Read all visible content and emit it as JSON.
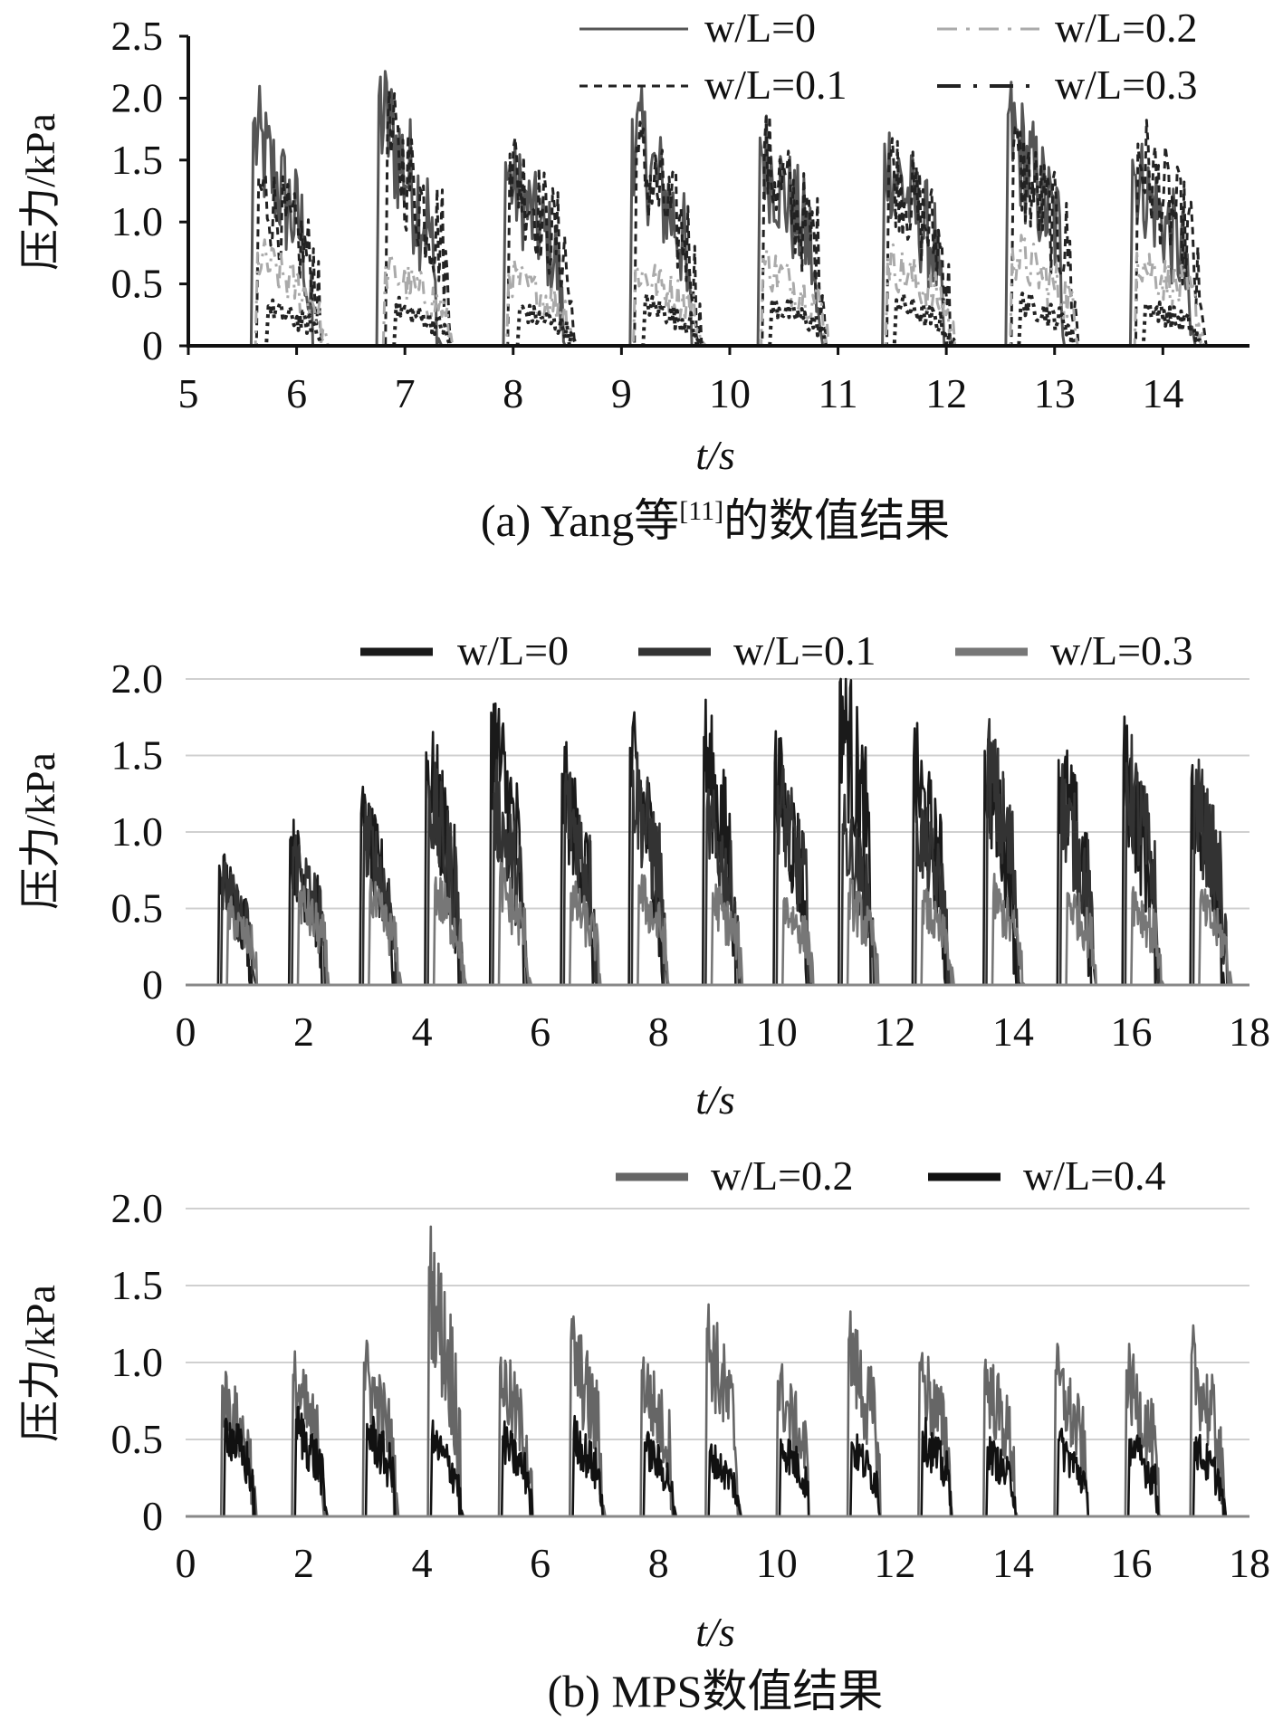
{
  "chart_data": [
    {
      "panel": "(a)",
      "type": "line",
      "caption": "(a) Yang等[11]的数值结果",
      "caption_parts": [
        "(a) Yang等",
        "[11]",
        "的数值结果"
      ],
      "xlabel": "t/s",
      "ylabel": "压力/kPa",
      "xlim": [
        5,
        14.8
      ],
      "ylim": [
        0,
        2.5
      ],
      "xticks": [
        "5",
        "6",
        "7",
        "8",
        "9",
        "10",
        "11",
        "12",
        "13",
        "14"
      ],
      "yticks": [
        "0",
        "0.5",
        "1.0",
        "1.5",
        "2.0",
        "2.5"
      ],
      "grid": false,
      "legend_position": "top-right",
      "series": [
        {
          "name": "w/L=0",
          "style": "solid",
          "color": "#555555",
          "impact_starts": [
            5.58,
            6.74,
            7.91,
            9.08,
            10.26,
            11.41,
            12.55,
            13.7
          ],
          "peaks": [
            1.8,
            2.02,
            1.48,
            1.83,
            1.68,
            1.63,
            1.87,
            1.5
          ],
          "duration": 0.55
        },
        {
          "name": "w/L=0.1",
          "style": "dashed",
          "color": "#222222",
          "impact_starts": [
            5.63,
            6.82,
            7.95,
            9.12,
            10.3,
            11.45,
            12.6,
            13.75
          ],
          "peaks": [
            1.35,
            1.76,
            1.55,
            1.6,
            1.6,
            1.55,
            1.6,
            1.63
          ],
          "duration": 0.6
        },
        {
          "name": "w/L=0.2",
          "style": "dashdot",
          "color": "#aaaaaa",
          "impact_starts": [
            5.62,
            6.8,
            7.94,
            9.11,
            10.29,
            11.44,
            12.59,
            13.74
          ],
          "peaks": [
            0.75,
            0.65,
            0.6,
            0.65,
            0.7,
            0.72,
            0.8,
            0.75
          ],
          "duration": 0.62
        },
        {
          "name": "w/L=0.3",
          "style": "dotted",
          "color": "#222222",
          "impact_starts": [
            5.72,
            6.9,
            8.04,
            9.2,
            10.37,
            11.52,
            12.67,
            13.82
          ],
          "peaks": [
            0.32,
            0.33,
            0.3,
            0.36,
            0.35,
            0.37,
            0.38,
            0.34
          ],
          "duration": 0.5
        }
      ]
    },
    {
      "panel": "(b) upper",
      "type": "line",
      "xlabel": "t/s",
      "ylabel": "压力/kPa",
      "xlim": [
        0,
        18
      ],
      "ylim": [
        0,
        2.0
      ],
      "xticks": [
        "0",
        "2",
        "4",
        "6",
        "8",
        "10",
        "12",
        "14",
        "16",
        "18"
      ],
      "yticks": [
        "0",
        "0.5",
        "1.0",
        "1.5",
        "2.0"
      ],
      "grid": true,
      "legend_position": "top-right",
      "series": [
        {
          "name": "w/L=0",
          "color": "#1a1a1a",
          "impact_starts": [
            0.55,
            1.75,
            2.95,
            4.05,
            5.15,
            6.35,
            7.5,
            8.75,
            9.95,
            11.05,
            12.3,
            13.5,
            14.75,
            15.85,
            17.0
          ],
          "peaks": [
            0.78,
            0.95,
            1.12,
            1.52,
            1.78,
            1.38,
            1.55,
            1.62,
            1.45,
            1.98,
            1.47,
            1.53,
            1.47,
            1.49,
            1.35
          ],
          "duration": 0.55
        },
        {
          "name": "w/L=0.1",
          "color": "#333333",
          "impact_starts": [
            0.6,
            1.8,
            3.0,
            4.1,
            5.2,
            6.4,
            7.55,
            8.8,
            10.0,
            11.1,
            12.35,
            13.55,
            14.8,
            15.9,
            17.05
          ],
          "peaks": [
            0.7,
            0.9,
            1.05,
            1.3,
            1.25,
            1.3,
            1.4,
            1.15,
            1.3,
            1.05,
            1.1,
            1.5,
            1.25,
            1.45,
            1.3
          ],
          "duration": 0.55
        },
        {
          "name": "w/L=0.3",
          "color": "#777777",
          "impact_starts": [
            0.7,
            1.9,
            3.1,
            4.2,
            5.3,
            6.5,
            7.65,
            8.9,
            10.1,
            11.2,
            12.45,
            13.65,
            14.9,
            16.0,
            17.15
          ],
          "peaks": [
            0.5,
            0.6,
            0.6,
            0.65,
            0.7,
            0.6,
            0.65,
            0.6,
            0.55,
            0.6,
            0.55,
            0.6,
            0.6,
            0.6,
            0.55
          ],
          "duration": 0.5
        }
      ]
    },
    {
      "panel": "(b) lower",
      "type": "line",
      "caption": "(b) MPS数值结果",
      "xlabel": "t/s",
      "ylabel": "压力/kPa",
      "xlim": [
        0,
        18
      ],
      "ylim": [
        0,
        2.0
      ],
      "xticks": [
        "0",
        "2",
        "4",
        "6",
        "8",
        "10",
        "12",
        "14",
        "16",
        "18"
      ],
      "yticks": [
        "0",
        "0.5",
        "1.0",
        "1.5",
        "2.0"
      ],
      "grid": true,
      "legend_position": "top-right",
      "series": [
        {
          "name": "w/L=0.2",
          "color": "#666666",
          "impact_starts": [
            0.6,
            1.8,
            3.0,
            4.1,
            5.3,
            6.5,
            7.7,
            8.8,
            10.0,
            11.2,
            12.4,
            13.5,
            14.7,
            15.9,
            17.0
          ],
          "peaks": [
            0.85,
            0.92,
            1.0,
            1.62,
            0.97,
            1.15,
            0.95,
            1.22,
            0.88,
            1.15,
            1.0,
            0.95,
            0.95,
            0.95,
            1.05
          ],
          "duration": 0.55
        },
        {
          "name": "w/L=0.4",
          "color": "#111111",
          "impact_starts": [
            0.65,
            1.85,
            3.05,
            4.15,
            5.35,
            6.55,
            7.75,
            8.85,
            10.05,
            11.25,
            12.45,
            13.55,
            14.75,
            15.95,
            17.05
          ],
          "peaks": [
            0.62,
            0.63,
            0.6,
            0.52,
            0.52,
            0.55,
            0.48,
            0.42,
            0.5,
            0.48,
            0.55,
            0.45,
            0.5,
            0.5,
            0.48
          ],
          "duration": 0.5
        }
      ]
    }
  ]
}
